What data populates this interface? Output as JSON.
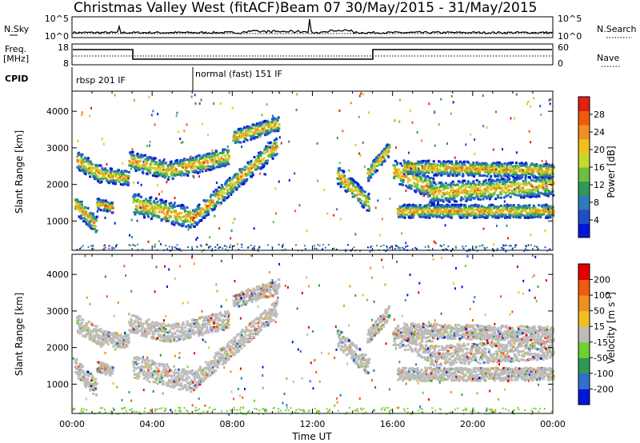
{
  "title_left": "Christmas Valley West (fitACF)",
  "title_right": "Beam 07 30/May/2015 - 31/May/2015",
  "top_panels": {
    "nsky_label": "N.Sky",
    "nsky_ticks": [
      "10^5",
      "10^0"
    ],
    "nsearch_label": "N.Search",
    "nsearch_ticks": [
      "10^5",
      "10^0"
    ],
    "freq_label_line1": "Freq.",
    "freq_label_line2": "[MHz]",
    "freq_ticks": [
      "18",
      "8"
    ],
    "nave_label": "Nave",
    "nave_ticks": [
      "60",
      "0"
    ],
    "cpid_label": "CPID",
    "cpid_segments": [
      {
        "label": "rbsp 201 IF",
        "start_hour": 0
      },
      {
        "label": "normal (fast) 151 IF",
        "start_hour": 6
      }
    ]
  },
  "chart_data": [
    {
      "type": "heatmap",
      "name": "Power panel",
      "ylabel": "Slant Range [km]",
      "xlabel": "",
      "x_ticks": [
        "00:00",
        "04:00",
        "08:00",
        "12:00",
        "16:00",
        "20:00",
        "00:00"
      ],
      "xlim_hours": [
        0,
        24
      ],
      "ylim": [
        200,
        4550
      ],
      "y_ticks": [
        1000,
        2000,
        3000,
        4000
      ],
      "colorbar": {
        "label": "Power [dB]",
        "ticks": [
          "4",
          "8",
          "12",
          "16",
          "20",
          "24",
          "28"
        ],
        "colors": [
          "#0018d8",
          "#1f4fc8",
          "#2f7cb8",
          "#2f9a58",
          "#6fbf3f",
          "#c8d82f",
          "#f0c020",
          "#f09020",
          "#f05a10",
          "#e02010"
        ]
      }
    },
    {
      "type": "heatmap",
      "name": "Velocity panel",
      "ylabel": "Slant Range [km]",
      "xlabel": "Time UT",
      "x_ticks": [
        "00:00",
        "04:00",
        "08:00",
        "12:00",
        "16:00",
        "20:00",
        "00:00"
      ],
      "xlim_hours": [
        0,
        24
      ],
      "ylim": [
        200,
        4550
      ],
      "y_ticks": [
        1000,
        2000,
        3000,
        4000
      ],
      "colorbar": {
        "label": "Velocity [m s-1]",
        "ticks": [
          "200",
          "100",
          "50",
          "15",
          "-15",
          "-50",
          "-100",
          "-200"
        ],
        "colors": [
          "#0018d8",
          "#2f6fd0",
          "#2f9a58",
          "#6fd030",
          "#bcbcbc",
          "#f0c020",
          "#f09020",
          "#f05a10",
          "#e00000"
        ]
      }
    }
  ]
}
